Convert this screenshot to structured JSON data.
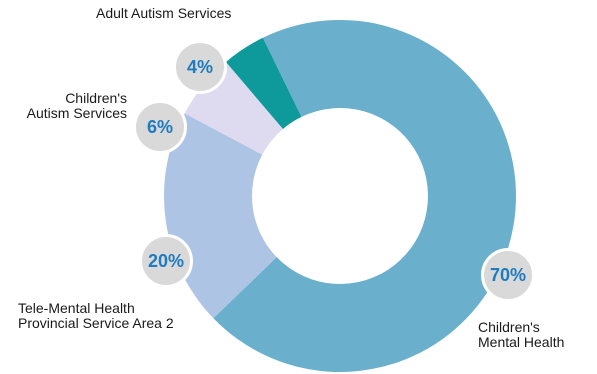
{
  "colors": {
    "childrens_mental_health": "#6aafcc",
    "tele_mental_health": "#adc4e5",
    "childrens_autism": "#dedaf0",
    "adult_autism": "#0e9a9a",
    "bubble_fill": "#d9d9d9",
    "bubble_text": "#1e7bbf"
  },
  "chart_data": {
    "type": "pie",
    "subtype": "donut",
    "categories": [
      "Children's Mental Health",
      "Tele-Mental Health Provincial Service Area 2",
      "Children's Autism Services",
      "Adult Autism Services"
    ],
    "values": [
      70,
      20,
      6,
      4
    ],
    "unit": "%",
    "title": "",
    "legend": "none",
    "labels": {
      "childrens_mental_health": "Children's\nMental Health",
      "tele_mental_health": "Tele-Mental Health\nProvincial Service Area 2",
      "childrens_autism": "Children's\nAutism Services",
      "adult_autism": "Adult Autism Services"
    },
    "value_labels": {
      "childrens_mental_health": "70%",
      "tele_mental_health": "20%",
      "childrens_autism": "6%",
      "adult_autism": "4%"
    }
  }
}
